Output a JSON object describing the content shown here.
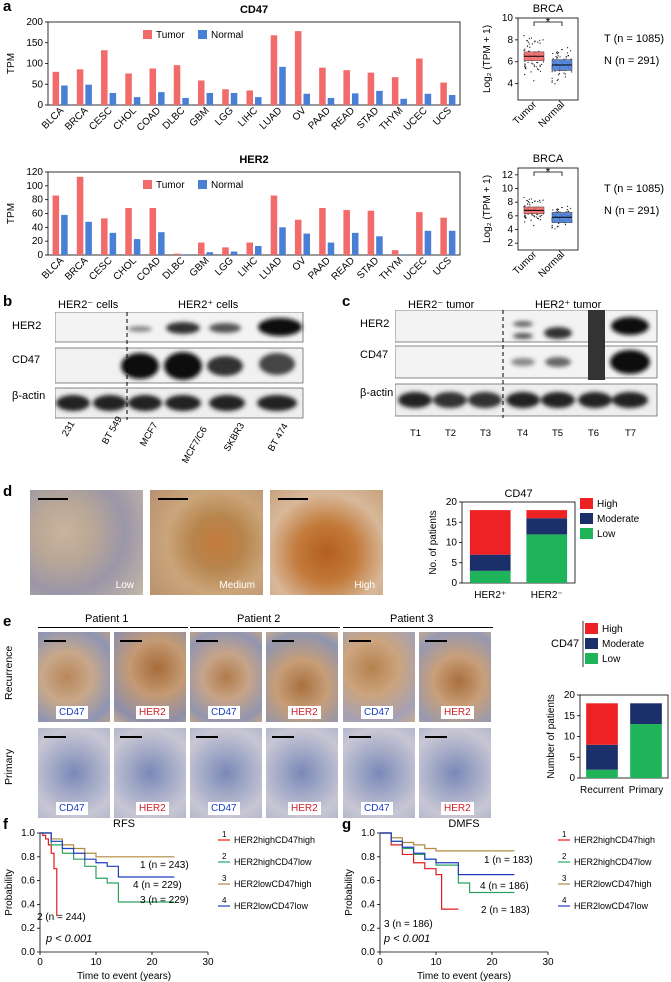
{
  "panels": {
    "a": "a",
    "b": "b",
    "c": "c",
    "d": "d",
    "e": "e",
    "f": "f",
    "g": "g"
  },
  "colors": {
    "tumor": "#f26b6b",
    "normal": "#4a7fd6",
    "high": "#ee2224",
    "moderate": "#1b2f6b",
    "low": "#1fb45a"
  },
  "panel_a": {
    "bar_legend": {
      "tumor": "Tumor",
      "normal": "Normal"
    },
    "ylabel": "TPM",
    "box_xcats": [
      "Tumor",
      "Normal"
    ],
    "box_title": "BRCA",
    "box_ylabel": "Log₂ (TPM + 1)",
    "star": "*",
    "counts": {
      "t": "T (n = 1085)",
      "n": "N (n = 291)"
    }
  },
  "panel_b": {
    "neg_label": "HER2⁻ cells",
    "pos_label": "HER2⁺ cells",
    "rows": [
      "HER2",
      "CD47",
      "β-actin"
    ],
    "lanes": [
      "231",
      "BT 549",
      "MCF7",
      "MCF7/C6",
      "SKBR3",
      "BT 474"
    ]
  },
  "panel_c": {
    "neg_label": "HER2⁻ tumor",
    "pos_label": "HER2⁺ tumor",
    "rows": [
      "HER2",
      "CD47",
      "β-actin"
    ],
    "lanes": [
      "T1",
      "T2",
      "T3",
      "T4",
      "T5",
      "T6",
      "T7"
    ]
  },
  "panel_d": {
    "ihc_captions": [
      "Low",
      "Medium",
      "High"
    ],
    "legend": [
      "High",
      "Moderate",
      "Low"
    ]
  },
  "panel_e": {
    "patients": [
      "Patient 1",
      "Patient 2",
      "Patient 3"
    ],
    "row_labels": [
      "Recurrence",
      "Primary"
    ],
    "captions": [
      "CD47",
      "HER2",
      "CD47",
      "HER2",
      "CD47",
      "HER2"
    ],
    "legend_title": "CD47",
    "legend": [
      "High",
      "Moderate",
      "Low"
    ]
  },
  "panel_f": {
    "legend": [
      {
        "num": "1",
        "label": "HER2highCD47high"
      },
      {
        "num": "2",
        "label": "HER2highCD47low"
      },
      {
        "num": "3",
        "label": "HER2lowCD47high"
      },
      {
        "num": "4",
        "label": "HER2lowCD47low"
      }
    ]
  },
  "chart_data": [
    {
      "type": "bar",
      "title": "CD47",
      "ylabel": "TPM",
      "ylim": [
        0,
        200
      ],
      "categories": [
        "BLCA",
        "BRCA",
        "CESC",
        "CHOL",
        "COAD",
        "DLBC",
        "GBM",
        "LGG",
        "LIHC",
        "LUAD",
        "OV",
        "PAAD",
        "READ",
        "STAD",
        "THYM",
        "UCEC",
        "UCS"
      ],
      "series": [
        {
          "name": "Tumor",
          "values": [
            80,
            86,
            132,
            76,
            88,
            96,
            59,
            38,
            35,
            168,
            178,
            90,
            84,
            78,
            67,
            112,
            54
          ]
        },
        {
          "name": "Normal",
          "values": [
            47,
            49,
            29,
            19,
            31,
            17,
            29,
            29,
            19,
            92,
            27,
            17,
            28,
            34,
            15,
            27,
            24
          ]
        }
      ]
    },
    {
      "type": "bar",
      "title": "HER2",
      "ylabel": "TPM",
      "ylim": [
        0,
        120
      ],
      "categories": [
        "BLCA",
        "BRCA",
        "CESC",
        "CHOL",
        "COAD",
        "DLBC",
        "GBM",
        "LGG",
        "LIHC",
        "LUAD",
        "OV",
        "PAAD",
        "READ",
        "STAD",
        "THYM",
        "UCEC",
        "UCS"
      ],
      "series": [
        {
          "name": "Tumor",
          "values": [
            86,
            113,
            53,
            68,
            68,
            2,
            18,
            11,
            18,
            86,
            51,
            68,
            65,
            64,
            7,
            62,
            54
          ]
        },
        {
          "name": "Normal",
          "values": [
            58,
            48,
            32,
            23,
            33,
            1,
            4,
            5,
            13,
            40,
            31,
            18,
            32,
            27,
            1,
            35,
            35
          ]
        }
      ]
    },
    {
      "type": "box",
      "title": "BRCA",
      "ylabel": "Log₂ (TPM + 1)",
      "ylim": [
        2.5,
        10
      ],
      "yticks": [
        4,
        6,
        8,
        10
      ],
      "categories": [
        "Tumor",
        "Normal"
      ],
      "medians": [
        6.5,
        5.7
      ],
      "q1": [
        6.1,
        5.2
      ],
      "q3": [
        6.9,
        6.2
      ]
    },
    {
      "type": "box",
      "title": "BRCA",
      "ylabel": "Log₂ (TPM + 1)",
      "ylim": [
        1,
        13
      ],
      "yticks": [
        2,
        4,
        6,
        8,
        10,
        12
      ],
      "categories": [
        "Tumor",
        "Normal"
      ],
      "medians": [
        6.8,
        5.8
      ],
      "q1": [
        6.3,
        5.0
      ],
      "q3": [
        7.3,
        6.5
      ]
    },
    {
      "type": "bar",
      "stacked": true,
      "title": "CD47",
      "ylabel": "No. of patients",
      "ylim": [
        0,
        20
      ],
      "yticks": [
        0,
        5,
        10,
        15,
        20
      ],
      "categories": [
        "HER2⁺",
        "HER2⁻"
      ],
      "series": [
        {
          "name": "Low",
          "values": [
            3,
            12
          ]
        },
        {
          "name": "Moderate",
          "values": [
            4,
            4
          ]
        },
        {
          "name": "High",
          "values": [
            11,
            2
          ]
        }
      ]
    },
    {
      "type": "bar",
      "stacked": true,
      "ylabel": "Number of patients",
      "ylim": [
        0,
        20
      ],
      "yticks": [
        0,
        5,
        10,
        15,
        20
      ],
      "categories": [
        "Recurrent",
        "Primary"
      ],
      "series": [
        {
          "name": "Low",
          "values": [
            2,
            13
          ]
        },
        {
          "name": "Moderate",
          "values": [
            6,
            5
          ]
        },
        {
          "name": "High",
          "values": [
            10,
            0
          ]
        }
      ]
    },
    {
      "type": "line",
      "title": "RFS",
      "xlabel": "Time to event (years)",
      "ylabel": "Probability",
      "xlim": [
        0,
        30
      ],
      "ylim": [
        0,
        1
      ],
      "xticks": [
        0,
        10,
        20,
        30
      ],
      "yticks": [
        0.0,
        0.2,
        0.4,
        0.6,
        0.8,
        1.0
      ],
      "pvalue": "p < 0.001",
      "series": [
        {
          "name": "1 (n = 243)",
          "label": "1 (n = 243)",
          "x": [
            0,
            0.5,
            1,
            1.5,
            2,
            2.5,
            3
          ],
          "y": [
            1,
            0.98,
            0.95,
            0.9,
            0.83,
            0.7,
            0.3
          ]
        },
        {
          "name": "2 (n = 244)",
          "label": "2 (n = 244)",
          "x": [
            0,
            2,
            4,
            6,
            8,
            10,
            12,
            14,
            16,
            24
          ],
          "y": [
            1,
            0.9,
            0.83,
            0.78,
            0.72,
            0.62,
            0.58,
            0.42,
            0.42,
            0.42
          ]
        },
        {
          "name": "3 (n = 229)",
          "label": "3 (n = 229)",
          "x": [
            0,
            2,
            4,
            6,
            8,
            10,
            14,
            20,
            24
          ],
          "y": [
            1,
            0.95,
            0.9,
            0.87,
            0.83,
            0.8,
            0.8,
            0.8,
            0.8
          ]
        },
        {
          "name": "4 (n = 229)",
          "label": "4 (n = 229)",
          "x": [
            0,
            2,
            4,
            6,
            8,
            10,
            12,
            14,
            24
          ],
          "y": [
            1,
            0.93,
            0.87,
            0.83,
            0.78,
            0.75,
            0.72,
            0.63,
            0.63
          ]
        }
      ]
    },
    {
      "type": "line",
      "title": "DMFS",
      "xlabel": "Time to event (years)",
      "ylabel": "Probability",
      "xlim": [
        0,
        30
      ],
      "ylim": [
        0,
        1
      ],
      "xticks": [
        0,
        10,
        20,
        30
      ],
      "yticks": [
        0.0,
        0.2,
        0.4,
        0.6,
        0.8,
        1.0
      ],
      "pvalue": "p  <  0.001",
      "series": [
        {
          "name": "1 (n = 183)",
          "label": "1 (n = 183)",
          "x": [
            0,
            2,
            4,
            6,
            8,
            10,
            11,
            12,
            14
          ],
          "y": [
            1,
            0.9,
            0.82,
            0.75,
            0.7,
            0.65,
            0.36,
            0.36,
            0.36
          ]
        },
        {
          "name": "2 (n = 183)",
          "label": "2 (n = 183)",
          "x": [
            0,
            2,
            4,
            6,
            8,
            10,
            14,
            16,
            20,
            24
          ],
          "y": [
            1,
            0.93,
            0.87,
            0.82,
            0.78,
            0.73,
            0.58,
            0.5,
            0.5,
            0.5
          ]
        },
        {
          "name": "3 (n = 186)",
          "label": "3 (n = 186)",
          "x": [
            0,
            2,
            4,
            6,
            8,
            10,
            14,
            20,
            24
          ],
          "y": [
            1,
            0.96,
            0.92,
            0.9,
            0.87,
            0.85,
            0.85,
            0.85,
            0.85
          ]
        },
        {
          "name": "4 (n = 186)",
          "label": "4 (n = 186)",
          "x": [
            0,
            2,
            4,
            6,
            8,
            10,
            14,
            24
          ],
          "y": [
            1,
            0.93,
            0.88,
            0.83,
            0.78,
            0.75,
            0.65,
            0.65
          ]
        }
      ]
    }
  ]
}
